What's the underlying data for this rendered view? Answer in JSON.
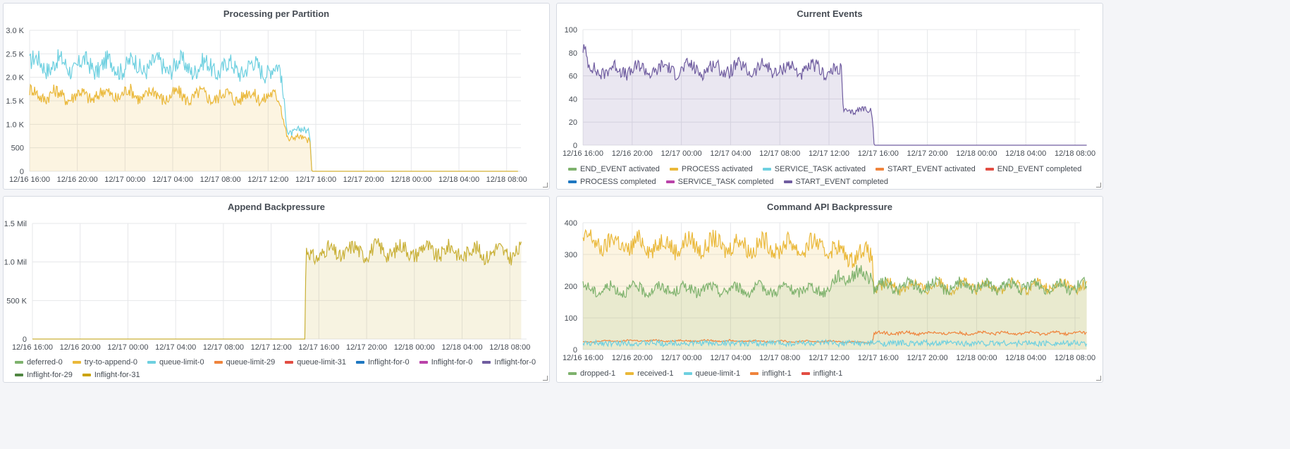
{
  "panels": [
    {
      "title": "Processing per Partition",
      "legend": []
    },
    {
      "title": "Current Events",
      "legend": [
        {
          "name": "END_EVENT activated",
          "color": "#7eb26d"
        },
        {
          "name": "PROCESS activated",
          "color": "#eab839"
        },
        {
          "name": "SERVICE_TASK activated",
          "color": "#6ed0e0"
        },
        {
          "name": "START_EVENT activated",
          "color": "#ef843c"
        },
        {
          "name": "END_EVENT completed",
          "color": "#e24d42"
        },
        {
          "name": "PROCESS completed",
          "color": "#1f78c1"
        },
        {
          "name": "SERVICE_TASK completed",
          "color": "#ba43a9"
        },
        {
          "name": "START_EVENT completed",
          "color": "#705da0"
        }
      ]
    },
    {
      "title": "Append Backpressure",
      "legend": [
        {
          "name": "deferred-0",
          "color": "#7eb26d"
        },
        {
          "name": "try-to-append-0",
          "color": "#eab839"
        },
        {
          "name": "queue-limit-0",
          "color": "#6ed0e0"
        },
        {
          "name": "queue-limit-29",
          "color": "#ef843c"
        },
        {
          "name": "queue-limit-31",
          "color": "#e24d42"
        },
        {
          "name": "Inflight-for-0",
          "color": "#1f78c1"
        },
        {
          "name": "Inflight-for-0",
          "color": "#ba43a9"
        },
        {
          "name": "Inflight-for-0",
          "color": "#705da0"
        },
        {
          "name": "Inflight-for-29",
          "color": "#508642"
        },
        {
          "name": "Inflight-for-31",
          "color": "#cca300"
        }
      ]
    },
    {
      "title": "Command API Backpressure",
      "legend": [
        {
          "name": "dropped-1",
          "color": "#7eb26d"
        },
        {
          "name": "received-1",
          "color": "#eab839"
        },
        {
          "name": "queue-limit-1",
          "color": "#6ed0e0"
        },
        {
          "name": "inflight-1",
          "color": "#ef843c"
        },
        {
          "name": "inflight-1",
          "color": "#e24d42"
        }
      ]
    }
  ],
  "chart_data": [
    {
      "type": "line",
      "title": "Processing per Partition",
      "x_ticks": [
        "12/16 16:00",
        "12/16 20:00",
        "12/17 00:00",
        "12/17 04:00",
        "12/17 08:00",
        "12/17 12:00",
        "12/17 16:00",
        "12/17 20:00",
        "12/18 00:00",
        "12/18 04:00",
        "12/18 08:00"
      ],
      "y_ticks": [
        "0",
        "500",
        "1.0 K",
        "1.5 K",
        "2.0 K",
        "2.5 K",
        "3.0 K"
      ],
      "ylim": [
        0,
        3000
      ],
      "grid": true,
      "series": [
        {
          "color": "#6ed0e0",
          "fill": false,
          "points": [
            [
              "12/16 16:00",
              2300
            ],
            [
              "12/16 20:00",
              2250
            ],
            [
              "12/17 00:00",
              2250
            ],
            [
              "12/17 04:00",
              2250
            ],
            [
              "12/17 08:00",
              2200
            ],
            [
              "12/17 12:00",
              2200
            ],
            [
              "12/17 13:00",
              2100
            ],
            [
              "12/17 13:40",
              850
            ],
            [
              "12/17 15:30",
              850
            ],
            [
              "12/17 15:40",
              0
            ],
            [
              "12/18 09:00",
              0
            ]
          ]
        },
        {
          "color": "#eab839",
          "fill": true,
          "points": [
            [
              "12/16 16:00",
              1650
            ],
            [
              "12/16 20:00",
              1600
            ],
            [
              "12/17 00:00",
              1650
            ],
            [
              "12/17 04:00",
              1600
            ],
            [
              "12/17 08:00",
              1600
            ],
            [
              "12/17 12:00",
              1600
            ],
            [
              "12/17 13:00",
              1500
            ],
            [
              "12/17 13:40",
              700
            ],
            [
              "12/17 15:30",
              700
            ],
            [
              "12/17 15:40",
              0
            ],
            [
              "12/18 09:00",
              0
            ]
          ]
        }
      ]
    },
    {
      "type": "area",
      "title": "Current Events",
      "x_ticks": [
        "12/16 16:00",
        "12/16 20:00",
        "12/17 00:00",
        "12/17 04:00",
        "12/17 08:00",
        "12/17 12:00",
        "12/17 16:00",
        "12/17 20:00",
        "12/18 00:00",
        "12/18 04:00",
        "12/18 08:00"
      ],
      "y_ticks": [
        "0",
        "20",
        "40",
        "60",
        "80",
        "100"
      ],
      "ylim": [
        0,
        100
      ],
      "grid": true,
      "series": [
        {
          "name": "START_EVENT completed",
          "color": "#705da0",
          "fill": true,
          "points": [
            [
              "12/16 16:00",
              85
            ],
            [
              "12/16 16:30",
              65
            ],
            [
              "12/16 20:00",
              65
            ],
            [
              "12/17 00:00",
              66
            ],
            [
              "12/17 04:00",
              66
            ],
            [
              "12/17 08:00",
              66
            ],
            [
              "12/17 12:00",
              65
            ],
            [
              "12/17 13:00",
              62
            ],
            [
              "12/17 13:10",
              30
            ],
            [
              "12/17 15:30",
              30
            ],
            [
              "12/17 15:40",
              0
            ],
            [
              "12/18 09:00",
              0
            ]
          ]
        }
      ]
    },
    {
      "type": "area",
      "title": "Append Backpressure",
      "x_ticks": [
        "12/16 16:00",
        "12/16 20:00",
        "12/17 00:00",
        "12/17 04:00",
        "12/17 08:00",
        "12/17 12:00",
        "12/17 16:00",
        "12/17 20:00",
        "12/18 00:00",
        "12/18 04:00",
        "12/18 08:00"
      ],
      "y_ticks": [
        "0",
        "500 K",
        "1.0 Mil",
        "1.5 Mil"
      ],
      "ylim": [
        0,
        1500000
      ],
      "grid": true,
      "series": [
        {
          "name": "try-to-append-0",
          "color": "#c9b037",
          "fill": true,
          "points": [
            [
              "12/16 16:00",
              0
            ],
            [
              "12/17 14:50",
              0
            ],
            [
              "12/17 14:55",
              1100000
            ],
            [
              "12/17 20:00",
              1150000
            ],
            [
              "12/18 00:00",
              1150000
            ],
            [
              "12/18 04:00",
              1130000
            ],
            [
              "12/18 09:00",
              1120000
            ]
          ]
        }
      ]
    },
    {
      "type": "area",
      "title": "Command API Backpressure",
      "x_ticks": [
        "12/16 16:00",
        "12/16 20:00",
        "12/17 00:00",
        "12/17 04:00",
        "12/17 08:00",
        "12/17 12:00",
        "12/17 16:00",
        "12/17 20:00",
        "12/18 00:00",
        "12/18 04:00",
        "12/18 08:00"
      ],
      "y_ticks": [
        "0",
        "100",
        "200",
        "300",
        "400"
      ],
      "ylim": [
        0,
        400
      ],
      "grid": true,
      "series": [
        {
          "name": "received-1",
          "color": "#eab839",
          "fill": true,
          "points": [
            [
              "12/16 16:00",
              340
            ],
            [
              "12/16 20:00",
              330
            ],
            [
              "12/17 00:00",
              330
            ],
            [
              "12/17 04:00",
              330
            ],
            [
              "12/17 08:00",
              325
            ],
            [
              "12/17 12:00",
              325
            ],
            [
              "12/17 13:00",
              300
            ],
            [
              "12/17 15:30",
              300
            ],
            [
              "12/17 15:40",
              200
            ],
            [
              "12/18 09:00",
              200
            ]
          ]
        },
        {
          "name": "dropped-1",
          "color": "#7eb26d",
          "fill": true,
          "points": [
            [
              "12/16 16:00",
              190
            ],
            [
              "12/16 20:00",
              190
            ],
            [
              "12/17 00:00",
              190
            ],
            [
              "12/17 04:00",
              190
            ],
            [
              "12/17 08:00",
              190
            ],
            [
              "12/17 12:00",
              190
            ],
            [
              "12/17 13:00",
              235
            ],
            [
              "12/17 15:30",
              235
            ],
            [
              "12/17 15:40",
              200
            ],
            [
              "12/18 09:00",
              200
            ]
          ]
        },
        {
          "name": "inflight-1",
          "color": "#ef843c",
          "fill": false,
          "points": [
            [
              "12/16 16:00",
              25
            ],
            [
              "12/16 20:00",
              28
            ],
            [
              "12/17 00:00",
              28
            ],
            [
              "12/17 04:00",
              28
            ],
            [
              "12/17 08:00",
              26
            ],
            [
              "12/17 12:00",
              26
            ],
            [
              "12/17 15:30",
              22
            ],
            [
              "12/17 15:40",
              52
            ],
            [
              "12/18 09:00",
              52
            ]
          ]
        },
        {
          "name": "queue-limit-1",
          "color": "#6ed0e0",
          "fill": false,
          "points": [
            [
              "12/16 16:00",
              20
            ],
            [
              "12/18 09:00",
              20
            ]
          ]
        }
      ]
    }
  ]
}
